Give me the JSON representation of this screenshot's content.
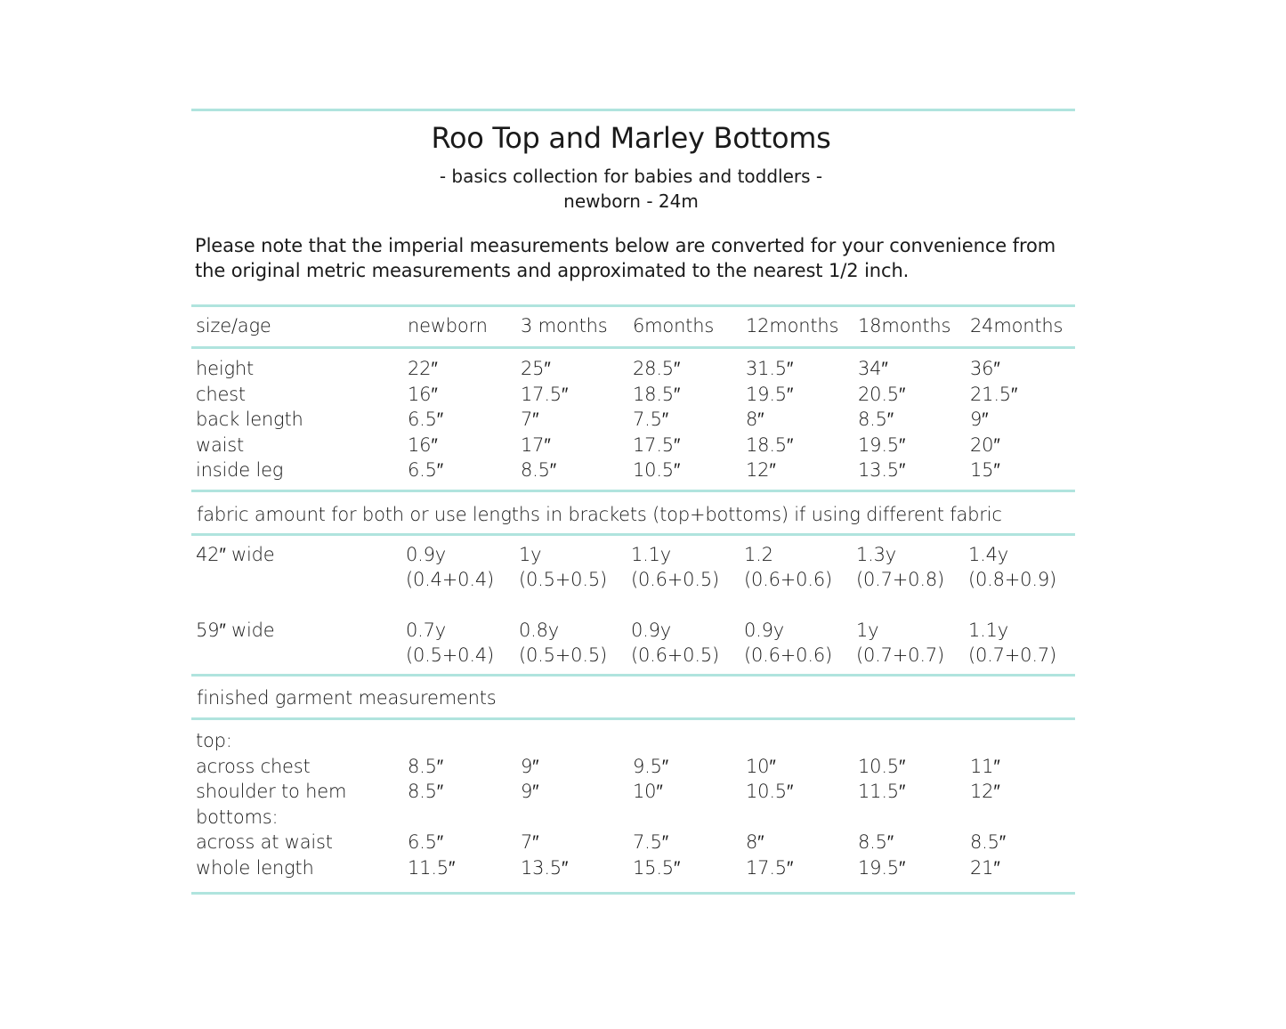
{
  "title": "Roo Top and Marley Bottoms",
  "subtitle": "- basics collection for babies and toddlers -",
  "size_range": "newborn - 24m",
  "note_lines": [
    "Please note that the imperial measurements below are converted for your convenience from",
    "the original metric measurements and approximated to the nearest 1/2 inch."
  ],
  "colors": {
    "rule": "#b0e4de",
    "text": "#1a1a1a"
  },
  "header": {
    "label": "size/age",
    "sizes": [
      "newborn",
      "3 months",
      "6months",
      "12months",
      "18months",
      "24months"
    ]
  },
  "body_measurements": [
    {
      "label": "height",
      "values": [
        "22″",
        "25″",
        "28.5″",
        "31.5″",
        "34″",
        "36″"
      ]
    },
    {
      "label": "chest",
      "values": [
        "16″",
        "17.5″",
        "18.5″",
        "19.5″",
        "20.5″",
        "21.5″"
      ]
    },
    {
      "label": "back length",
      "values": [
        "6.5″",
        "7″",
        "7.5″",
        "8″",
        "8.5″",
        "9″"
      ]
    },
    {
      "label": "waist",
      "values": [
        "16″",
        "17″",
        "17.5″",
        "18.5″",
        "19.5″",
        "20″"
      ]
    },
    {
      "label": "inside leg",
      "values": [
        "6.5″",
        "8.5″",
        "10.5″",
        "12″",
        "13.5″",
        "15″"
      ]
    }
  ],
  "fabric_heading": "fabric amount for both or use lengths in brackets (top+bottoms) if using different fabric",
  "fabric": [
    {
      "label": "42″ wide",
      "totals": [
        "0.9y",
        "1y",
        "1.1y",
        "1.2",
        "1.3y",
        "1.4y"
      ],
      "splits": [
        "(0.4+0.4)",
        "(0.5+0.5)",
        "(0.6+0.5)",
        "(0.6+0.6)",
        "(0.7+0.8)",
        "(0.8+0.9)"
      ]
    },
    {
      "label": "59″ wide",
      "totals": [
        "0.7y",
        "0.8y",
        "0.9y",
        "0.9y",
        "1y",
        "1.1y"
      ],
      "splits": [
        "(0.5+0.4)",
        "(0.5+0.5)",
        "(0.6+0.5)",
        "(0.6+0.6)",
        "(0.7+0.7)",
        "(0.7+0.7)"
      ]
    }
  ],
  "finished_heading": "finished garment measurements",
  "finished": [
    {
      "label": "top:",
      "values": []
    },
    {
      "label": "across chest",
      "values": [
        "8.5″",
        "9″",
        "9.5″",
        "10″",
        "10.5″",
        "11″"
      ]
    },
    {
      "label": "shoulder to hem",
      "values": [
        "8.5″",
        "9″",
        "10″",
        "10.5″",
        "11.5″",
        "12″"
      ]
    },
    {
      "label": "bottoms:",
      "values": []
    },
    {
      "label": "across at waist",
      "values": [
        "6.5″",
        "7″",
        "7.5″",
        "8″",
        "8.5″",
        "8.5″"
      ]
    },
    {
      "label": "whole length",
      "values": [
        "11.5″",
        "13.5″",
        "15.5″",
        "17.5″",
        "19.5″",
        "21″"
      ]
    }
  ]
}
